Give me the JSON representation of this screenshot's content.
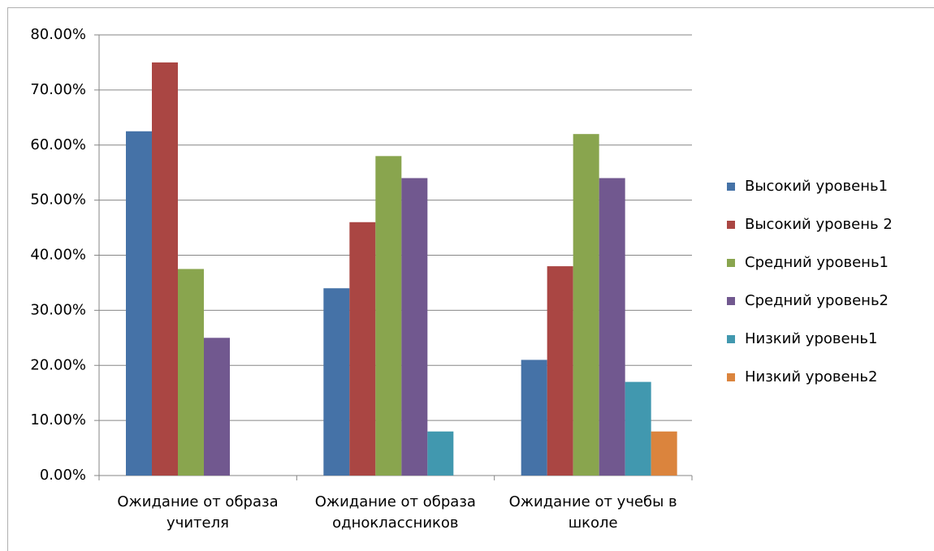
{
  "chart_data": {
    "type": "bar",
    "categories": [
      "Ожидание от образа учителя",
      "Ожидание от образа одноклассников",
      "Ожидание от учебы в школе"
    ],
    "series": [
      {
        "name": "Высокий уровень1",
        "color": "#4572a7",
        "values": [
          62.5,
          34,
          21
        ]
      },
      {
        "name": "Высокий уровень 2",
        "color": "#aa4643",
        "values": [
          75,
          46,
          38
        ]
      },
      {
        "name": "Средний уровень1",
        "color": "#89a54e",
        "values": [
          37.5,
          58,
          62
        ]
      },
      {
        "name": "Средний уровень2",
        "color": "#71588f",
        "values": [
          25,
          54,
          54
        ]
      },
      {
        "name": "Низкий уровень1",
        "color": "#4198af",
        "values": [
          0,
          8,
          17
        ]
      },
      {
        "name": "Низкий уровень2",
        "color": "#db843d",
        "values": [
          0,
          0,
          8
        ]
      }
    ],
    "ylim": [
      0,
      80
    ],
    "yticks": [
      {
        "value": 0,
        "label": "0.00%"
      },
      {
        "value": 10,
        "label": "10.00%"
      },
      {
        "value": 20,
        "label": "20.00%"
      },
      {
        "value": 30,
        "label": "30.00%"
      },
      {
        "value": 40,
        "label": "40.00%"
      },
      {
        "value": 50,
        "label": "50.00%"
      },
      {
        "value": 60,
        "label": "60.00%"
      },
      {
        "value": 70,
        "label": "70.00%"
      },
      {
        "value": 80,
        "label": "80.00%"
      }
    ],
    "grid": true,
    "legend": "right"
  }
}
